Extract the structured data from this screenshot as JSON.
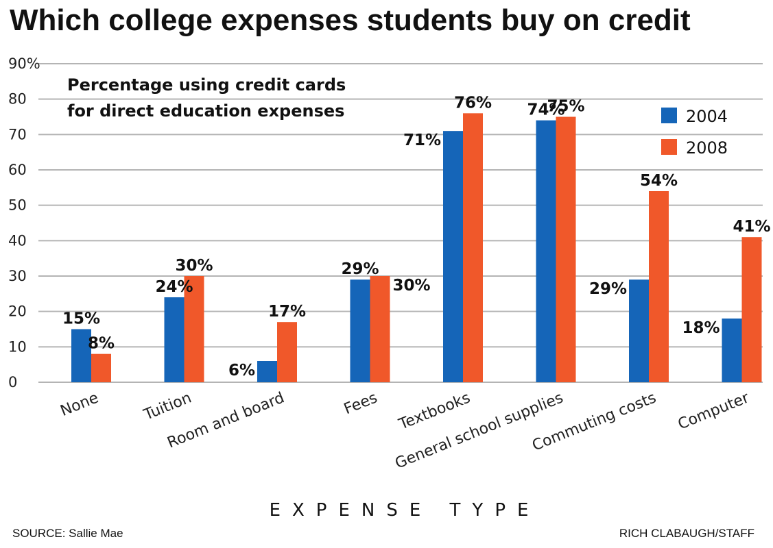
{
  "chart_data": {
    "type": "bar",
    "title": "Which college expenses students buy on credit",
    "subtitle_lines": [
      "Percentage using credit cards",
      "for direct education expenses"
    ],
    "xlabel": "EXPENSE TYPE",
    "ylabel": "",
    "ylim": [
      0,
      90
    ],
    "yticks": [
      "0",
      "10",
      "20",
      "30",
      "40",
      "50",
      "60",
      "70",
      "80",
      "90%"
    ],
    "grid": true,
    "legend_position": "top-right",
    "categories": [
      "None",
      "Tuition",
      "Room and board",
      "Fees",
      "Textbooks",
      "General school supplies",
      "Commuting costs",
      "Computer"
    ],
    "series": [
      {
        "name": "2004",
        "color": "#1565b8",
        "values": [
          15,
          24,
          6,
          29,
          71,
          74,
          29,
          18
        ],
        "labels": [
          "15%",
          "24%",
          "6%",
          "29%",
          "71%",
          "74%",
          "29%",
          "18%"
        ]
      },
      {
        "name": "2008",
        "color": "#f0582a",
        "values": [
          8,
          30,
          17,
          30,
          76,
          75,
          54,
          41
        ],
        "labels": [
          "8%",
          "30%",
          "17%",
          "30%",
          "76%",
          "75%",
          "54%",
          "41%"
        ]
      }
    ],
    "source": "SOURCE: Sallie Mae",
    "credit": "RICH CLABAUGH/STAFF"
  }
}
